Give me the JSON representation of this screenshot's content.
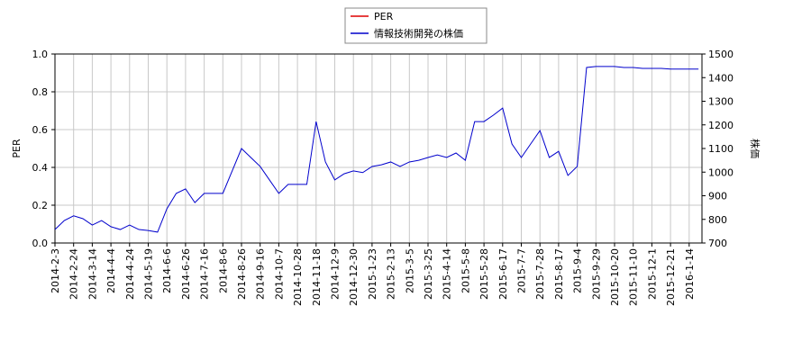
{
  "chart_data": {
    "type": "line",
    "categories": [
      "2014-2-3",
      null,
      "2014-2-24",
      null,
      "2014-3-14",
      null,
      "2014-4-4",
      null,
      "2014-4-24",
      null,
      "2014-5-19",
      null,
      "2014-6-6",
      null,
      "2014-6-26",
      null,
      "2014-7-16",
      null,
      "2014-8-6",
      null,
      "2014-8-26",
      null,
      "2014-9-16",
      null,
      "2014-10-7",
      null,
      "2014-10-28",
      null,
      "2014-11-18",
      null,
      "2014-12-9",
      null,
      "2014-12-30",
      null,
      "2015-1-23",
      null,
      "2015-2-13",
      null,
      "2015-3-5",
      null,
      "2015-3-25",
      null,
      "2015-4-14",
      null,
      "2015-5-8",
      null,
      "2015-5-28",
      null,
      "2015-6-17",
      null,
      "2015-7-7",
      null,
      "2015-7-28",
      null,
      "2015-8-17",
      null,
      "2015-9-4",
      null,
      "2015-9-29",
      null,
      "2015-10-20",
      null,
      "2015-11-10",
      null,
      "2015-12-1",
      null,
      "2015-12-21",
      null,
      "2016-1-14",
      null
    ],
    "series": [
      {
        "name": "PER",
        "color": "#dd0000",
        "values": [
          null,
          null,
          null,
          null,
          null,
          null,
          null,
          null,
          null,
          null,
          null,
          null,
          null,
          null,
          null,
          null,
          null,
          null,
          null,
          null,
          null,
          null,
          null,
          null,
          null,
          null,
          null,
          null,
          null,
          null,
          null,
          null,
          null,
          null,
          null,
          null,
          null,
          null,
          null,
          null,
          null,
          null,
          null,
          null,
          null,
          null,
          null,
          null,
          null,
          null,
          null,
          null,
          null,
          null,
          null,
          null,
          null,
          null,
          null,
          null,
          null,
          null,
          null,
          null,
          null,
          null,
          null,
          null,
          null,
          null
        ]
      },
      {
        "name": "情報技術開発の株価",
        "color": "#0000cc",
        "axis": "y2",
        "values": [
          757,
          795,
          815,
          803,
          776,
          795,
          769,
          757,
          776,
          757,
          753,
          746,
          845,
          910,
          929,
          871,
          910,
          910,
          910,
          1005,
          1100,
          1062,
          1024,
          967,
          910,
          948,
          948,
          948,
          1214,
          1043,
          967,
          993,
          1005,
          998,
          1024,
          1031,
          1043,
          1024,
          1043,
          1050,
          1062,
          1073,
          1062,
          1081,
          1050,
          1214,
          1214,
          1241,
          1271,
          1119,
          1062,
          1119,
          1176,
          1062,
          1088,
          986,
          1024,
          1443,
          1447,
          1447,
          1447,
          1443,
          1443,
          1439,
          1439,
          1439,
          1436,
          1436,
          1436,
          1436
        ]
      }
    ],
    "ylabel": "PER",
    "y2label": "株価",
    "ylim": [
      0,
      1
    ],
    "yticks": [
      {
        "value": 0,
        "label": "0.0"
      },
      {
        "value": 0.2,
        "label": "0.2"
      },
      {
        "value": 0.4,
        "label": "0.4"
      },
      {
        "value": 0.6,
        "label": "0.6"
      },
      {
        "value": 0.8,
        "label": "0.8"
      },
      {
        "value": 1,
        "label": "1.0"
      }
    ],
    "y2lim": [
      700,
      1500
    ],
    "y2ticks": [
      700,
      800,
      900,
      1000,
      1100,
      1200,
      1300,
      1400,
      1500
    ],
    "grid": true,
    "legend": "top"
  }
}
